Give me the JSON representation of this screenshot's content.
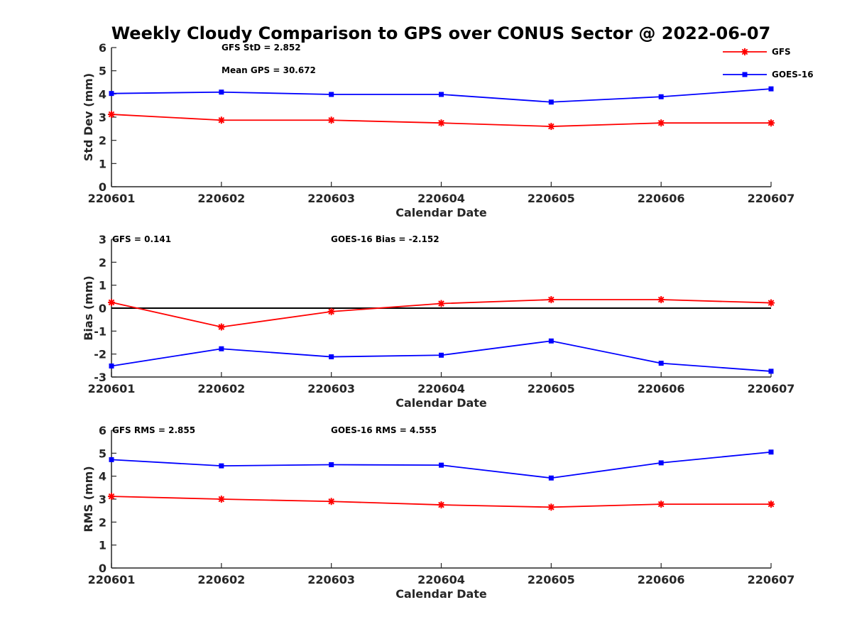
{
  "title": "Weekly Cloudy Comparison to GPS over CONUS Sector @ 2022-06-07",
  "colors": {
    "gfs": "#ff0000",
    "goes": "#0000ff",
    "zero_line": "#000000",
    "axis": "#262626"
  },
  "legend": {
    "placement": "top-right",
    "items": [
      {
        "name": "GFS",
        "color": "#ff0000",
        "marker": "asterisk"
      },
      {
        "name": "GOES-16",
        "color": "#0000ff",
        "marker": "square"
      }
    ]
  },
  "chart_data": [
    {
      "type": "line",
      "ylabel": "Std Dev (mm)",
      "xlabel": "Calendar Date",
      "ylim": [
        0,
        6
      ],
      "yticks": [
        "0",
        "1",
        "2",
        "3",
        "4",
        "5",
        "6"
      ],
      "categories": [
        "220601",
        "220602",
        "220603",
        "220604",
        "220605",
        "220606",
        "220607"
      ],
      "series": [
        {
          "name": "GFS",
          "color": "#ff0000",
          "marker": "asterisk",
          "values": [
            3.12,
            2.87,
            2.87,
            2.75,
            2.6,
            2.75,
            2.75
          ]
        },
        {
          "name": "GOES-16",
          "color": "#0000ff",
          "marker": "square",
          "values": [
            4.02,
            4.08,
            3.98,
            3.98,
            3.65,
            3.88,
            4.22
          ]
        }
      ],
      "annotations": [
        "GFS StD = 2.852",
        "Mean GPS = 30.672"
      ],
      "zero_line": false
    },
    {
      "type": "line",
      "ylabel": "Bias (mm)",
      "xlabel": "Calendar Date",
      "ylim": [
        -3,
        3
      ],
      "yticks": [
        "-3",
        "-2",
        "-1",
        "0",
        "1",
        "2",
        "3"
      ],
      "categories": [
        "220601",
        "220602",
        "220603",
        "220604",
        "220605",
        "220606",
        "220607"
      ],
      "series": [
        {
          "name": "GFS",
          "color": "#ff0000",
          "marker": "asterisk",
          "values": [
            0.25,
            -0.82,
            -0.15,
            0.2,
            0.37,
            0.37,
            0.23
          ]
        },
        {
          "name": "GOES-16",
          "color": "#0000ff",
          "marker": "square",
          "values": [
            -2.52,
            -1.77,
            -2.12,
            -2.05,
            -1.43,
            -2.4,
            -2.75
          ]
        }
      ],
      "annotations": [
        "GFS = 0.141",
        "GOES-16 Bias  = -2.152"
      ],
      "zero_line": true
    },
    {
      "type": "line",
      "ylabel": "RMS (mm)",
      "xlabel": "Calendar Date",
      "ylim": [
        0,
        6
      ],
      "yticks": [
        "0",
        "1",
        "2",
        "3",
        "4",
        "5",
        "6"
      ],
      "categories": [
        "220601",
        "220602",
        "220603",
        "220604",
        "220605",
        "220606",
        "220607"
      ],
      "series": [
        {
          "name": "GFS",
          "color": "#ff0000",
          "marker": "asterisk",
          "values": [
            3.12,
            3.0,
            2.9,
            2.75,
            2.65,
            2.78,
            2.78
          ]
        },
        {
          "name": "GOES-16",
          "color": "#0000ff",
          "marker": "square",
          "values": [
            4.72,
            4.45,
            4.5,
            4.48,
            3.92,
            4.58,
            5.05
          ]
        }
      ],
      "annotations": [
        "GFS RMS = 2.855",
        "GOES-16 RMS = 4.555"
      ],
      "zero_line": false
    }
  ]
}
